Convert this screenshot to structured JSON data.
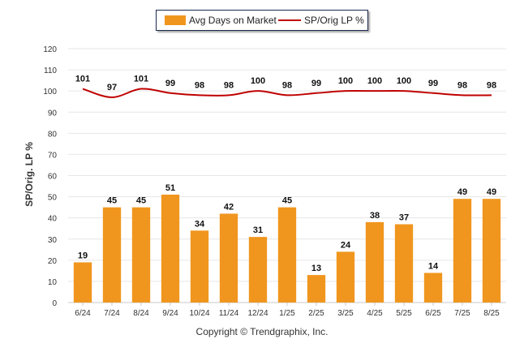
{
  "legend": {
    "bars_label": "Avg Days on Market",
    "line_label": "SP/Orig LP %"
  },
  "copyright": "Copyright © Trendgraphix, Inc.",
  "colors": {
    "bar": "#f0961e",
    "line": "#c00000",
    "grid": "#e6e6e6",
    "axis_text": "#333333"
  },
  "chart_data": {
    "type": "bar",
    "ylabel": "SP/Orig. LP %",
    "xlabel": "",
    "ylim": [
      0,
      120
    ],
    "yticks": [
      0,
      10,
      20,
      30,
      40,
      50,
      60,
      70,
      80,
      90,
      100,
      110,
      120
    ],
    "grid": true,
    "legend_position": "top-center",
    "categories": [
      "6/24",
      "7/24",
      "8/24",
      "9/24",
      "10/24",
      "11/24",
      "12/24",
      "1/25",
      "2/25",
      "3/25",
      "4/25",
      "5/25",
      "6/25",
      "7/25",
      "8/25"
    ],
    "series": [
      {
        "name": "Avg Days on Market",
        "type": "bar",
        "values": [
          19,
          45,
          45,
          51,
          34,
          42,
          31,
          45,
          13,
          24,
          38,
          37,
          14,
          49,
          49
        ]
      },
      {
        "name": "SP/Orig LP %",
        "type": "line",
        "values": [
          101,
          97,
          101,
          99,
          98,
          98,
          100,
          98,
          99,
          100,
          100,
          100,
          99,
          98,
          98
        ]
      }
    ]
  }
}
